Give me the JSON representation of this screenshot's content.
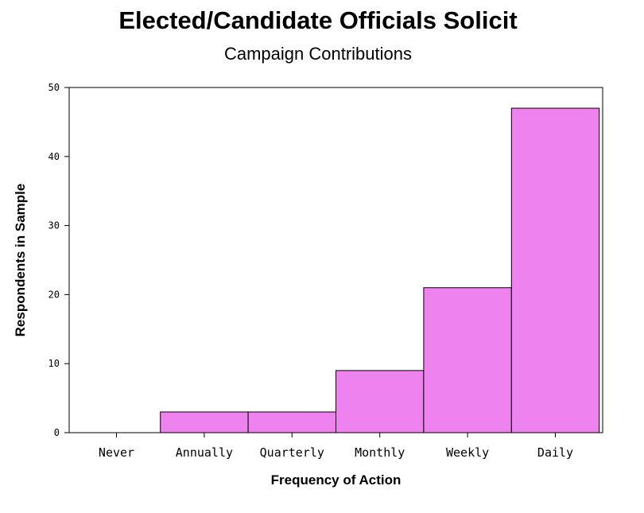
{
  "chart_data": {
    "type": "bar",
    "title": "Elected/Candidate Officials Solicit",
    "subtitle": "Campaign Contributions",
    "xlabel": "Frequency of Action",
    "ylabel": "Respondents in Sample",
    "categories": [
      "Never",
      "Annually",
      "Quarterly",
      "Monthly",
      "Weekly",
      "Daily"
    ],
    "values": [
      0,
      3,
      3,
      9,
      21,
      47
    ],
    "ylim": [
      0,
      50
    ],
    "yticks": [
      0,
      10,
      20,
      30,
      40,
      50
    ],
    "bar_color": "#ee82ee",
    "grid": false,
    "legend": "none"
  }
}
